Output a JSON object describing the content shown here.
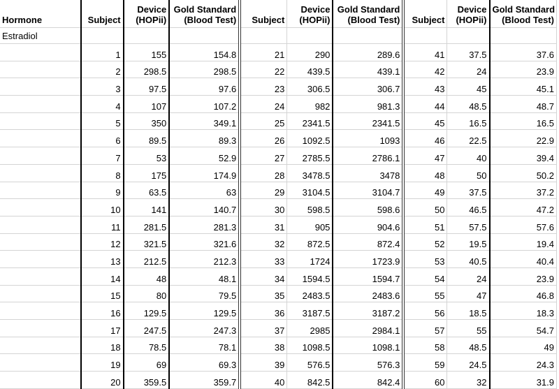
{
  "headers": {
    "hormone": "Hormone",
    "subject": "Subject",
    "device": [
      "Device",
      "(HOPii)"
    ],
    "gold": [
      "Gold Standard",
      "(Blood Test)"
    ]
  },
  "category": "Estradiol",
  "groups": [
    [
      [
        1,
        155,
        154.8
      ],
      [
        2,
        298.5,
        298.5
      ],
      [
        3,
        97.5,
        97.6
      ],
      [
        4,
        107,
        107.2
      ],
      [
        5,
        350,
        349.1
      ],
      [
        6,
        89.5,
        89.3
      ],
      [
        7,
        53,
        52.9
      ],
      [
        8,
        175,
        174.9
      ],
      [
        9,
        63.5,
        63
      ],
      [
        10,
        141,
        140.7
      ],
      [
        11,
        281.5,
        281.3
      ],
      [
        12,
        321.5,
        321.6
      ],
      [
        13,
        212.5,
        212.3
      ],
      [
        14,
        48,
        48.1
      ],
      [
        15,
        80,
        79.5
      ],
      [
        16,
        129.5,
        129.5
      ],
      [
        17,
        247.5,
        247.3
      ],
      [
        18,
        78.5,
        78.1
      ],
      [
        19,
        69,
        69.3
      ],
      [
        20,
        359.5,
        359.7
      ]
    ],
    [
      [
        21,
        290,
        289.6
      ],
      [
        22,
        439.5,
        439.1
      ],
      [
        23,
        306.5,
        306.7
      ],
      [
        24,
        982,
        981.3
      ],
      [
        25,
        2341.5,
        2341.5
      ],
      [
        26,
        1092.5,
        1093
      ],
      [
        27,
        2785.5,
        2786.1
      ],
      [
        28,
        3478.5,
        3478
      ],
      [
        29,
        3104.5,
        3104.7
      ],
      [
        30,
        598.5,
        598.6
      ],
      [
        31,
        905,
        904.6
      ],
      [
        32,
        872.5,
        872.4
      ],
      [
        33,
        1724,
        1723.9
      ],
      [
        34,
        1594.5,
        1594.7
      ],
      [
        35,
        2483.5,
        2483.6
      ],
      [
        36,
        3187.5,
        3187.2
      ],
      [
        37,
        2985,
        2984.1
      ],
      [
        38,
        1098.5,
        1098.1
      ],
      [
        39,
        576.5,
        576.3
      ],
      [
        40,
        842.5,
        842.4
      ]
    ],
    [
      [
        41,
        37.5,
        37.6
      ],
      [
        42,
        24,
        23.9
      ],
      [
        43,
        45,
        45.1
      ],
      [
        44,
        48.5,
        48.7
      ],
      [
        45,
        16.5,
        16.5
      ],
      [
        46,
        22.5,
        22.9
      ],
      [
        47,
        40,
        39.4
      ],
      [
        48,
        50,
        50.2
      ],
      [
        49,
        37.5,
        37.2
      ],
      [
        50,
        46.5,
        47.2
      ],
      [
        51,
        57.5,
        57.6
      ],
      [
        52,
        19.5,
        19.4
      ],
      [
        53,
        40.5,
        40.4
      ],
      [
        54,
        24,
        23.9
      ],
      [
        55,
        47,
        46.8
      ],
      [
        56,
        18.5,
        18.3
      ],
      [
        57,
        55,
        54.7
      ],
      [
        58,
        48.5,
        49
      ],
      [
        59,
        24.5,
        24.3
      ],
      [
        60,
        32,
        31.9
      ]
    ]
  ]
}
